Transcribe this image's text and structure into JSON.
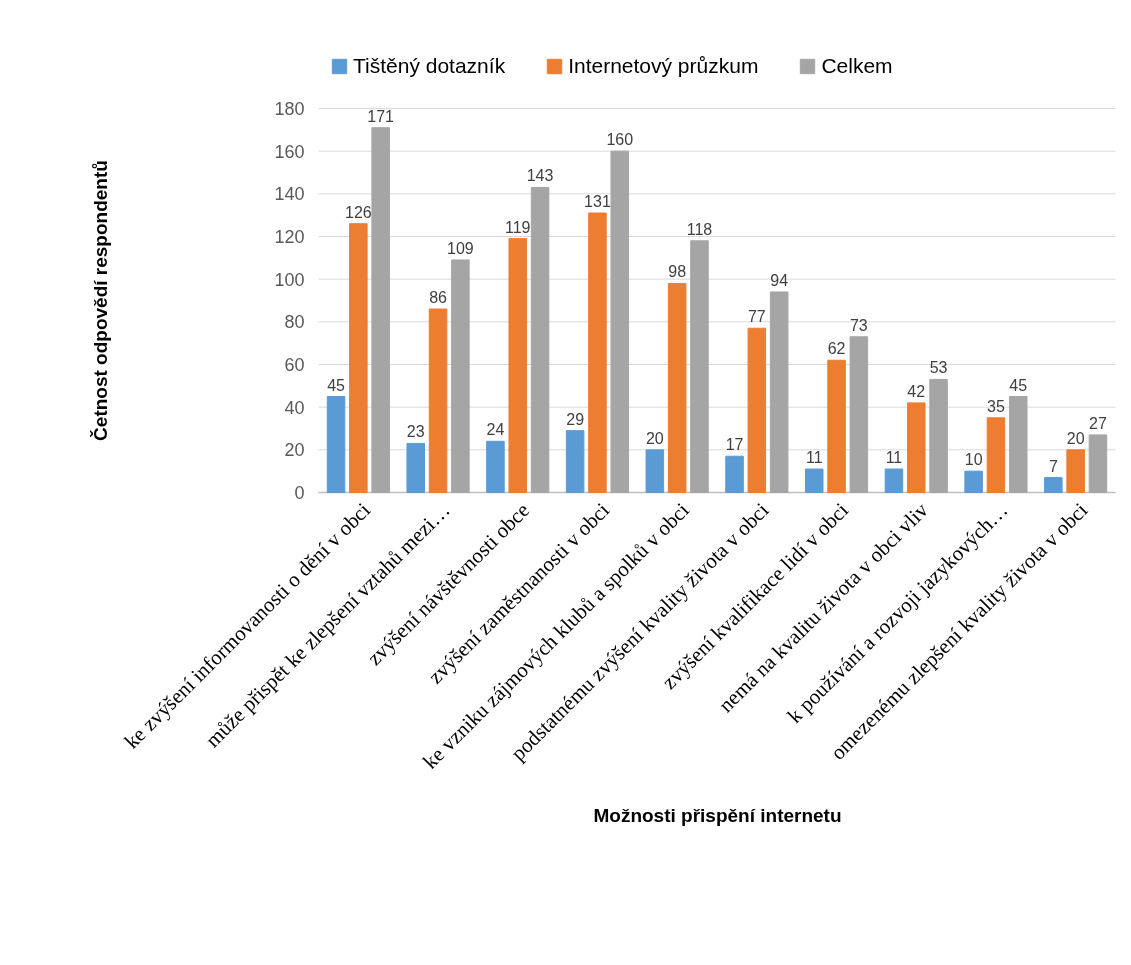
{
  "chart_data": {
    "type": "bar",
    "xlabel": "Možnosti přispění internetu",
    "ylabel": "Četnost odpovědí respondentů",
    "categories": [
      "ke zvýšení informovanosti o dění v obci",
      "může přispět ke zlepšení vztahů mezi…",
      "zvýšení návštěvnosti obce",
      "zvýšení zaměstnanosti v obci",
      "ke vzniku zájmových klubů a spolků v obci",
      "podstatnému zvýšení kvality života v obci",
      "zvýšení kvalifikace lidí v obci",
      "nemá na kvalitu života v obci vliv",
      "k používání a rozvoji jazykových…",
      "omezenému zlepšení kvality života v obci"
    ],
    "series": [
      {
        "name": "Tištěný dotazník",
        "color": "#5b9bd5",
        "values": [
          45,
          23,
          24,
          29,
          20,
          17,
          11,
          11,
          10,
          7
        ]
      },
      {
        "name": "Internetový průzkum",
        "color": "#ed7d31",
        "values": [
          126,
          86,
          119,
          131,
          98,
          77,
          62,
          42,
          35,
          20
        ]
      },
      {
        "name": "Celkem",
        "color": "#a5a5a5",
        "values": [
          171,
          109,
          143,
          160,
          118,
          94,
          73,
          53,
          45,
          27
        ]
      }
    ],
    "ylim": [
      0,
      180
    ],
    "yticks": [
      0,
      20,
      40,
      60,
      80,
      100,
      120,
      140,
      160,
      180
    ],
    "grid": "y",
    "legend": "top",
    "data_labels": true
  }
}
